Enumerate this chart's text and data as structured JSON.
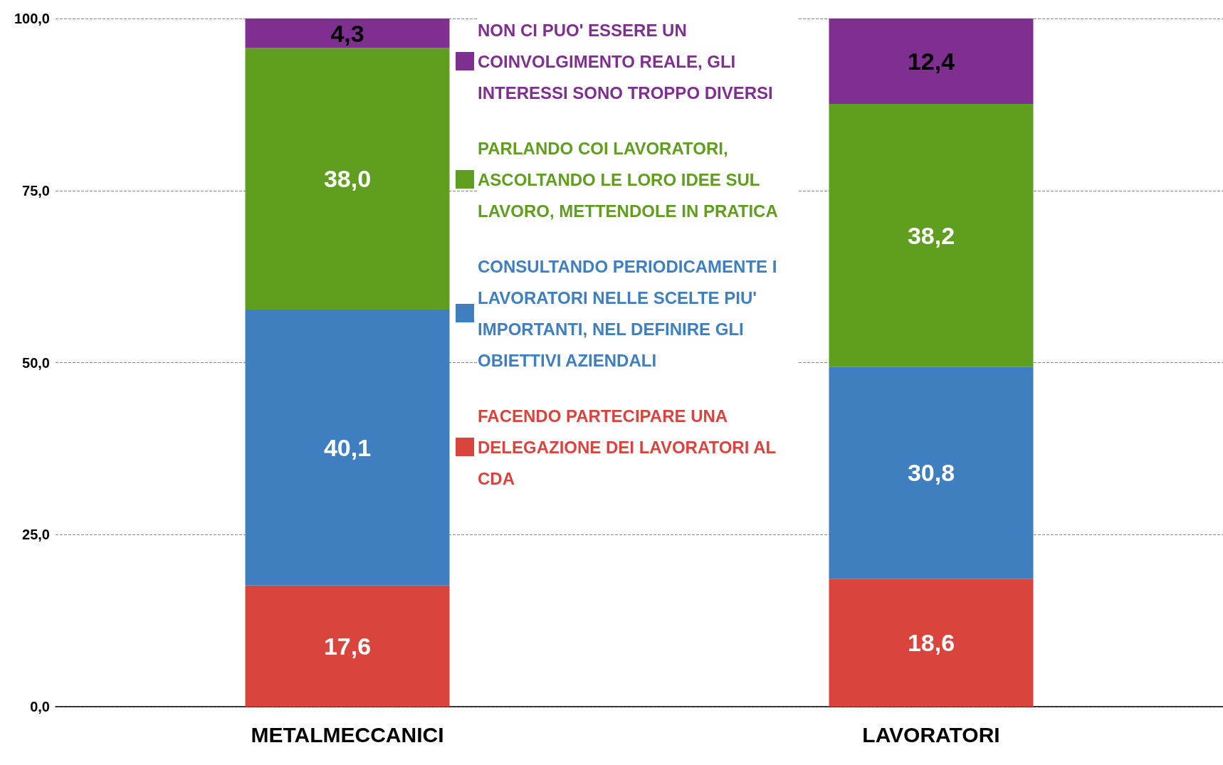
{
  "chart_data": {
    "type": "bar",
    "stacked": true,
    "categories": [
      "METALMECCANICI",
      "LAVORATORI"
    ],
    "series": [
      {
        "name": "FACENDO PARTECIPARE UNA DELEGAZIONE DEI LAVORATORI AL CDA",
        "color": "#d9453c",
        "values": [
          17.6,
          18.6
        ],
        "value_labels": [
          "17,6",
          "18,6"
        ]
      },
      {
        "name": "CONSULTANDO PERIODICAMENTE I LAVORATORI NELLE SCELTE PIU' IMPORTANTI, NEL DEFINIRE GLI OBIETTIVI AZIENDALI",
        "color": "#3f7fc0",
        "values": [
          40.1,
          30.8
        ],
        "value_labels": [
          "40,1",
          "30,8"
        ]
      },
      {
        "name": "PARLANDO COI LAVORATORI, ASCOLTANDO LE LORO IDEE SUL LAVORO, METTENDOLE IN PRATICA",
        "color": "#5f9e1e",
        "values": [
          38.0,
          38.2
        ],
        "value_labels": [
          "38,0",
          "38,2"
        ]
      },
      {
        "name": "NON CI PUO' ESSERE UN COINVOLGIMENTO REALE, GLI INTERESSI SONO TROPPO DIVERSI",
        "color": "#7f2f8f",
        "values": [
          4.3,
          12.4
        ],
        "value_labels": [
          "4,3",
          "12,4"
        ]
      }
    ],
    "ylim": [
      0,
      100
    ],
    "yticks": [
      {
        "value": 0,
        "label": "0,0"
      },
      {
        "value": 25,
        "label": "25,0"
      },
      {
        "value": 50,
        "label": "50,0"
      },
      {
        "value": 75,
        "label": "75,0"
      },
      {
        "value": 100,
        "label": "100,0"
      }
    ],
    "grid": "y",
    "legend": "center"
  }
}
